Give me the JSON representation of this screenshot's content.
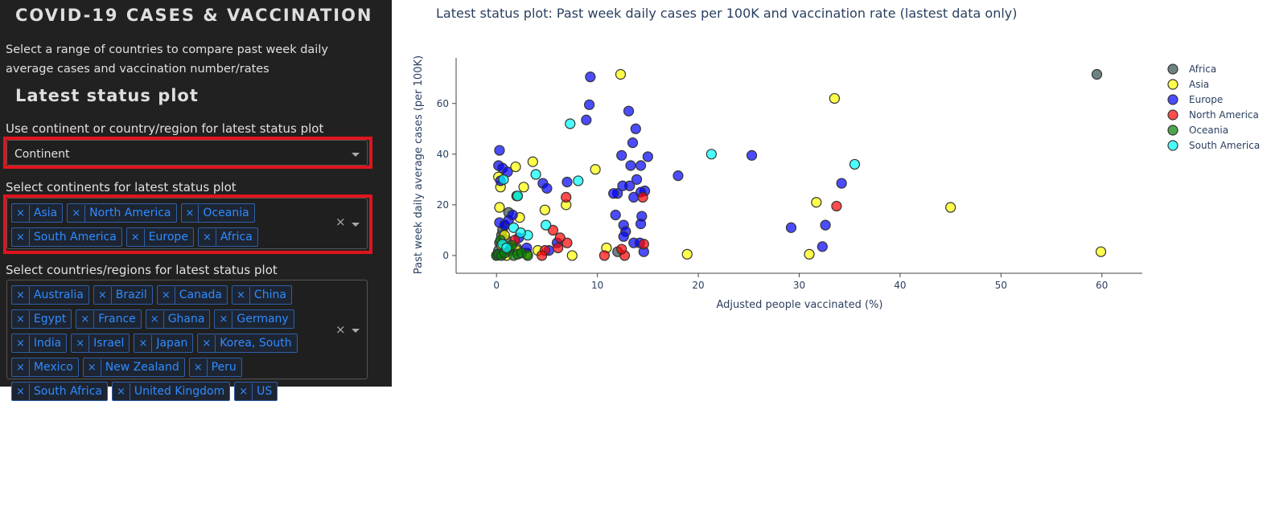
{
  "sidebar": {
    "title": "COVID-19 CASES & VACCINATION",
    "intro": "Select a range of countries to compare past week daily average cases and vaccination number/rates",
    "section_title": "Latest status plot",
    "mode_label": "Use continent or country/region for latest status plot",
    "mode_value": "Continent",
    "continents_label": "Select continents for latest status plot",
    "continents": [
      "Asia",
      "North America",
      "Oceania",
      "South America",
      "Europe",
      "Africa"
    ],
    "countries_label": "Select countries/regions for latest status plot",
    "countries": [
      "Australia",
      "Brazil",
      "Canada",
      "China",
      "Egypt",
      "France",
      "Ghana",
      "Germany",
      "India",
      "Israel",
      "Japan",
      "Korea, South",
      "Mexico",
      "New Zealand",
      "Peru",
      "South Africa",
      "United Kingdom",
      "US"
    ],
    "chip_remove_glyph": "×",
    "clear_glyph": "×"
  },
  "chart_data": {
    "type": "scatter",
    "title": "Latest status plot: Past week daily cases per 100K and vaccination rate (lastest data only)",
    "xlabel": "Adjusted people vaccinated (%)",
    "ylabel": "Past week daily average cases (per 100K)",
    "xlim": [
      -4,
      64
    ],
    "ylim": [
      -7,
      78
    ],
    "xticks": [
      0,
      10,
      20,
      30,
      40,
      50,
      60
    ],
    "yticks": [
      0,
      20,
      40,
      60
    ],
    "grid": false,
    "legend_position": "top-right",
    "series": [
      {
        "name": "Africa",
        "color": "#2f4f4f",
        "points": [
          [
            0,
            0
          ],
          [
            0.2,
            2
          ],
          [
            0.3,
            5
          ],
          [
            0.5,
            8
          ],
          [
            0.8,
            12
          ],
          [
            1.2,
            17
          ],
          [
            1.5,
            3
          ],
          [
            0.1,
            0.5
          ],
          [
            0.4,
            1
          ],
          [
            1,
            6
          ],
          [
            2,
            3
          ],
          [
            3,
            1
          ],
          [
            0.6,
            10
          ],
          [
            59.5,
            71.5
          ],
          [
            12,
            1.5
          ]
        ]
      },
      {
        "name": "Asia",
        "color": "#ffff00",
        "points": [
          [
            12.3,
            71.5
          ],
          [
            33.5,
            62
          ],
          [
            9.8,
            34
          ],
          [
            3.6,
            37
          ],
          [
            1.9,
            35
          ],
          [
            0.2,
            31
          ],
          [
            0.4,
            27
          ],
          [
            2.7,
            27
          ],
          [
            31.7,
            21
          ],
          [
            45,
            19
          ],
          [
            0.3,
            19
          ],
          [
            4.8,
            18
          ],
          [
            2.3,
            15
          ],
          [
            6.9,
            20
          ],
          [
            10.9,
            3
          ],
          [
            0.8,
            8
          ],
          [
            2,
            2
          ],
          [
            3,
            0.5
          ],
          [
            1,
            0
          ],
          [
            7.5,
            0
          ],
          [
            18.9,
            0.5
          ],
          [
            31,
            0.5
          ],
          [
            59.9,
            1.5
          ],
          [
            0.5,
            4
          ],
          [
            4.1,
            2
          ]
        ]
      },
      {
        "name": "Europe",
        "color": "#0000ff",
        "points": [
          [
            9.3,
            70.5
          ],
          [
            9.2,
            59.5
          ],
          [
            8.9,
            53.5
          ],
          [
            13.1,
            57
          ],
          [
            13.8,
            50
          ],
          [
            13.5,
            44.5
          ],
          [
            15,
            39
          ],
          [
            12.4,
            39.5
          ],
          [
            14.3,
            35.5
          ],
          [
            13.3,
            35.5
          ],
          [
            13.9,
            30
          ],
          [
            13.2,
            27.5
          ],
          [
            12.5,
            27.5
          ],
          [
            12,
            24.5
          ],
          [
            11.6,
            24.5
          ],
          [
            14.7,
            25.5
          ],
          [
            14.3,
            25
          ],
          [
            13.6,
            23
          ],
          [
            0.3,
            41.5
          ],
          [
            0.2,
            35.5
          ],
          [
            0.6,
            34.5
          ],
          [
            1.1,
            33
          ],
          [
            4.6,
            28.5
          ],
          [
            5,
            26.5
          ],
          [
            7,
            29
          ],
          [
            0.4,
            29.5
          ],
          [
            18,
            31.5
          ],
          [
            25.3,
            39.5
          ],
          [
            34.2,
            28.5
          ],
          [
            32.6,
            12
          ],
          [
            29.2,
            11
          ],
          [
            32.3,
            3.5
          ],
          [
            11.8,
            16
          ],
          [
            14.4,
            15.5
          ],
          [
            14.3,
            12.5
          ],
          [
            12.6,
            12
          ],
          [
            12.8,
            9.5
          ],
          [
            12.6,
            7.5
          ],
          [
            13.6,
            5
          ],
          [
            14.2,
            5
          ],
          [
            14.6,
            1.5
          ],
          [
            0.3,
            13
          ],
          [
            0.8,
            12
          ],
          [
            1.2,
            14
          ],
          [
            1.6,
            16
          ],
          [
            2.2,
            7
          ],
          [
            3,
            3
          ],
          [
            5.2,
            2
          ],
          [
            6,
            5
          ],
          [
            0.4,
            0.5
          ]
        ]
      },
      {
        "name": "North America",
        "color": "#ff0000",
        "points": [
          [
            33.7,
            19.5
          ],
          [
            14.5,
            23
          ],
          [
            6.9,
            23
          ],
          [
            5.6,
            10
          ],
          [
            6.3,
            7
          ],
          [
            7,
            5
          ],
          [
            6.1,
            3
          ],
          [
            4.8,
            2
          ],
          [
            4.5,
            0
          ],
          [
            10.7,
            0
          ],
          [
            12.7,
            0
          ],
          [
            14.6,
            4.5
          ],
          [
            12.4,
            2.5
          ],
          [
            1.8,
            6
          ]
        ]
      },
      {
        "name": "Oceania",
        "color": "#008000",
        "points": [
          [
            0,
            0
          ],
          [
            0.2,
            0.5
          ],
          [
            0.5,
            0
          ],
          [
            0.8,
            1
          ],
          [
            1.3,
            2
          ],
          [
            1.7,
            0
          ],
          [
            2.1,
            0.5
          ],
          [
            2.5,
            1
          ],
          [
            3.1,
            0
          ],
          [
            2,
            23.5
          ],
          [
            0.4,
            6
          ],
          [
            1.5,
            4
          ]
        ]
      },
      {
        "name": "South America",
        "color": "#00ffff",
        "points": [
          [
            7.3,
            52
          ],
          [
            21.3,
            40
          ],
          [
            35.5,
            36
          ],
          [
            8.1,
            29.5
          ],
          [
            0.7,
            30
          ],
          [
            3.9,
            32
          ],
          [
            2.1,
            23.5
          ],
          [
            4.9,
            12
          ],
          [
            1.7,
            11
          ],
          [
            3.1,
            8
          ],
          [
            2.4,
            9
          ],
          [
            0.6,
            4.5
          ],
          [
            1,
            3
          ]
        ]
      }
    ]
  }
}
